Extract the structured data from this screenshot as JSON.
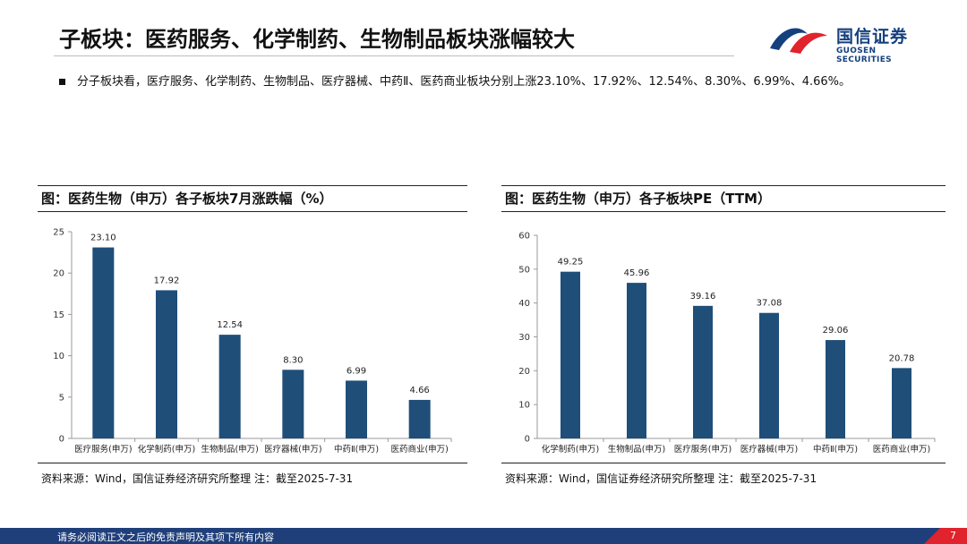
{
  "header": {
    "title": "子板块：医药服务、化学制药、生物制品板块涨幅较大"
  },
  "logo": {
    "cn": "国信证券",
    "en": "GUOSEN SECURITIES"
  },
  "summary": {
    "text": "分子板块看，医疗服务、化学制药、生物制品、医疗器械、中药Ⅱ、医药商业板块分别上涨23.10%、17.92%、12.54%、8.30%、6.99%、4.66%。"
  },
  "footer": {
    "disclaimer": "请务必阅读正文之后的免责声明及其项下所有内容",
    "page": "7"
  },
  "colors": {
    "bar": "#1f4e79",
    "brand": "#15407e",
    "accent_red": "#e0232c"
  },
  "chart_data": [
    {
      "type": "bar",
      "title": "图：医药生物（申万）各子板块7月涨跌幅（%）",
      "categories": [
        "医疗服务(申万)",
        "化学制药(申万)",
        "生物制品(申万)",
        "医疗器械(申万)",
        "中药Ⅱ(申万)",
        "医药商业(申万)"
      ],
      "values": [
        23.1,
        17.92,
        12.54,
        8.3,
        6.99,
        4.66
      ],
      "data_labels": [
        "23.10",
        "17.92",
        "12.54",
        "8.30",
        "6.99",
        "4.66"
      ],
      "yticks": [
        "0",
        "5",
        "10",
        "15",
        "20",
        "25"
      ],
      "ylim": [
        0,
        25
      ],
      "source": "资料来源：Wind，国信证券经济研究所整理 注：截至2025-7-31"
    },
    {
      "type": "bar",
      "title": "图：医药生物（申万）各子板块PE（TTM）",
      "categories": [
        "化学制药(申万)",
        "生物制品(申万)",
        "医疗服务(申万)",
        "医疗器械(申万)",
        "中药Ⅱ(申万)",
        "医药商业(申万)"
      ],
      "values": [
        49.25,
        45.96,
        39.16,
        37.08,
        29.06,
        20.78
      ],
      "data_labels": [
        "49.25",
        "45.96",
        "39.16",
        "37.08",
        "29.06",
        "20.78"
      ],
      "yticks": [
        "0",
        "10",
        "20",
        "30",
        "40",
        "50",
        "60"
      ],
      "ylim": [
        0,
        60
      ],
      "source": "资料来源：Wind，国信证券经济研究所整理 注：截至2025-7-31"
    }
  ]
}
